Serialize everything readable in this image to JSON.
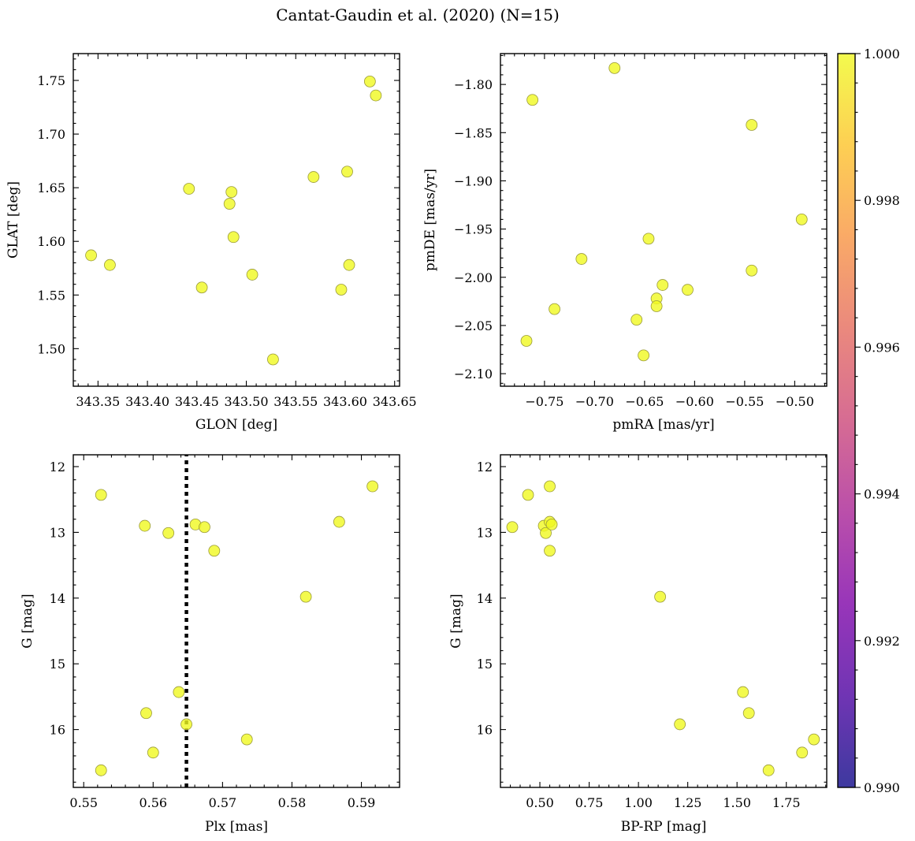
{
  "figure": {
    "title": "Cantat-Gaudin et al. (2020) (N=15)"
  },
  "colors": {
    "point_fill": "#f0f921",
    "point_edge": "#9a9a3a",
    "reference_line": "#000000"
  },
  "colorbar": {
    "colormap": "plasma",
    "range": [
      0.99,
      1.0
    ],
    "ticks": [
      "0.990",
      "0.992",
      "0.994",
      "0.996",
      "0.998",
      "1.000"
    ],
    "tick_values": [
      0.99,
      0.992,
      0.994,
      0.996,
      0.998,
      1.0
    ]
  },
  "chart_data": [
    {
      "type": "scatter",
      "id": "glon-glat",
      "xlabel": "GLON [deg]",
      "ylabel": "GLAT [deg]",
      "xlim": [
        343.325,
        343.655
      ],
      "ylim": [
        1.465,
        1.775
      ],
      "xticks": [
        343.35,
        343.4,
        343.45,
        343.5,
        343.55,
        343.6,
        343.65
      ],
      "xticklabels": [
        "343.35",
        "343.40",
        "343.45",
        "343.50",
        "343.55",
        "343.60",
        "343.65"
      ],
      "yticks": [
        1.5,
        1.55,
        1.6,
        1.65,
        1.7,
        1.75
      ],
      "yticklabels": [
        "1.50",
        "1.55",
        "1.60",
        "1.65",
        "1.70",
        "1.75"
      ],
      "x": [
        343.343,
        343.362,
        343.442,
        343.455,
        343.483,
        343.485,
        343.487,
        343.506,
        343.527,
        343.568,
        343.596,
        343.602,
        343.604,
        343.625,
        343.631
      ],
      "y": [
        1.587,
        1.578,
        1.649,
        1.557,
        1.635,
        1.646,
        1.604,
        1.569,
        1.49,
        1.66,
        1.555,
        1.665,
        1.578,
        1.749,
        1.736
      ]
    },
    {
      "type": "scatter",
      "id": "pmra-pmde",
      "xlabel": "pmRA [mas/yr]",
      "ylabel": "pmDE [mas/yr]",
      "xlim": [
        -0.794,
        -0.468
      ],
      "ylim": [
        -2.113,
        -1.768
      ],
      "xticks": [
        -0.75,
        -0.7,
        -0.65,
        -0.6,
        -0.55,
        -0.5
      ],
      "xticklabels": [
        "−0.75",
        "−0.70",
        "−0.65",
        "−0.60",
        "−0.55",
        "−0.50"
      ],
      "yticks": [
        -2.1,
        -2.05,
        -2.0,
        -1.95,
        -1.9,
        -1.85,
        -1.8
      ],
      "yticklabels": [
        "−2.10",
        "−2.05",
        "−2.00",
        "−1.95",
        "−1.90",
        "−1.85",
        "−1.80"
      ],
      "x": [
        -0.768,
        -0.762,
        -0.74,
        -0.713,
        -0.68,
        -0.658,
        -0.651,
        -0.646,
        -0.638,
        -0.638,
        -0.632,
        -0.607,
        -0.543,
        -0.543,
        -0.493
      ],
      "y": [
        -2.066,
        -1.816,
        -2.033,
        -1.981,
        -1.783,
        -2.044,
        -2.081,
        -1.96,
        -2.022,
        -2.03,
        -2.008,
        -2.013,
        -1.842,
        -1.993,
        -1.94
      ]
    },
    {
      "type": "scatter",
      "id": "plx-g",
      "xlabel": "Plx [mas]",
      "ylabel": "G [mag]",
      "xlim": [
        0.5485,
        0.5955
      ],
      "ylim": [
        16.88,
        11.82
      ],
      "y_inverted": true,
      "xticks": [
        0.55,
        0.56,
        0.57,
        0.58,
        0.59
      ],
      "xticklabels": [
        "0.55",
        "0.56",
        "0.57",
        "0.58",
        "0.59"
      ],
      "yticks": [
        12,
        13,
        14,
        15,
        16
      ],
      "yticklabels": [
        "12",
        "13",
        "14",
        "15",
        "16"
      ],
      "reference_line": {
        "axis": "x",
        "value": 0.5648,
        "style": "dotted"
      },
      "x": [
        0.5525,
        0.5525,
        0.5588,
        0.559,
        0.56,
        0.5622,
        0.5637,
        0.5648,
        0.5661,
        0.5674,
        0.5688,
        0.5735,
        0.582,
        0.5868,
        0.5916
      ],
      "y": [
        12.43,
        16.62,
        12.9,
        15.75,
        16.35,
        13.01,
        15.43,
        15.92,
        12.88,
        12.92,
        13.28,
        16.15,
        13.98,
        12.84,
        12.3
      ]
    },
    {
      "type": "scatter",
      "id": "bprp-g",
      "xlabel": "BP-RP [mag]",
      "ylabel": "G [mag]",
      "xlim": [
        0.3,
        1.955
      ],
      "ylim": [
        16.88,
        11.82
      ],
      "y_inverted": true,
      "xticks": [
        0.5,
        0.75,
        1.0,
        1.25,
        1.5,
        1.75
      ],
      "xticklabels": [
        "0.50",
        "0.75",
        "1.00",
        "1.25",
        "1.50",
        "1.75"
      ],
      "yticks": [
        12,
        13,
        14,
        15,
        16
      ],
      "yticklabels": [
        "12",
        "13",
        "14",
        "15",
        "16"
      ],
      "x": [
        0.36,
        0.44,
        0.52,
        0.53,
        0.55,
        0.56,
        0.55,
        0.55,
        1.11,
        1.21,
        1.53,
        1.56,
        1.66,
        1.83,
        1.89
      ],
      "y": [
        12.92,
        12.43,
        12.9,
        13.01,
        12.84,
        12.88,
        13.28,
        12.3,
        13.98,
        15.92,
        15.43,
        15.75,
        16.62,
        16.35,
        16.15
      ]
    }
  ]
}
